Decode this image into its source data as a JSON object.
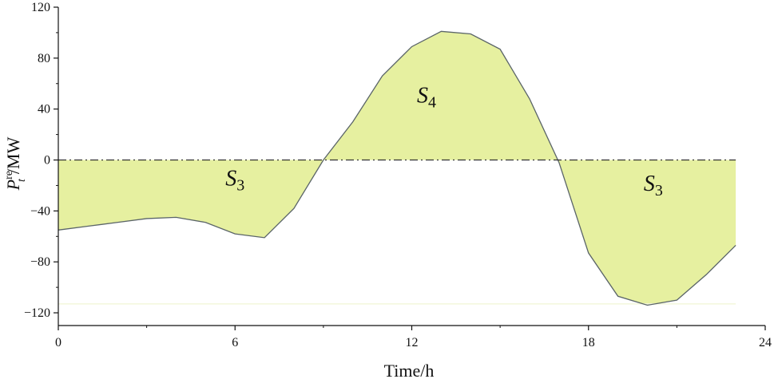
{
  "chart_data": {
    "type": "area",
    "xlabel": "Time/h",
    "ylabel": {
      "symbol": "P",
      "superscript": "re",
      "subscript": "t",
      "unit": "/MW"
    },
    "xlim": [
      0,
      24
    ],
    "ylim": [
      -130,
      120
    ],
    "xticks": [
      0,
      6,
      12,
      18,
      24
    ],
    "yticks": [
      -120,
      -80,
      -40,
      0,
      40,
      80,
      120
    ],
    "zero_line": {
      "value": 0,
      "style": "dash-dot",
      "x_range": [
        0,
        23
      ]
    },
    "fill_color": "#e6f0a0",
    "line_color": "#5a6468",
    "x": [
      0,
      1,
      2,
      3,
      4,
      5,
      6,
      7,
      8,
      9,
      10,
      11,
      12,
      13,
      14,
      15,
      16,
      17,
      18,
      19,
      20,
      21,
      22,
      23
    ],
    "values": [
      -55,
      -52,
      -49,
      -46,
      -45,
      -49,
      -58,
      -61,
      -38,
      0,
      30,
      66,
      89,
      101,
      99,
      87,
      48,
      -2,
      -73,
      -107,
      -114,
      -110,
      -90,
      -67
    ],
    "fill_floor": -113,
    "regions": [
      {
        "label": "S",
        "sub": "3",
        "x": 6.0,
        "y": -20
      },
      {
        "label": "S",
        "sub": "4",
        "x": 12.5,
        "y": 45
      },
      {
        "label": "S",
        "sub": "3",
        "x": 20.2,
        "y": -24
      }
    ]
  }
}
